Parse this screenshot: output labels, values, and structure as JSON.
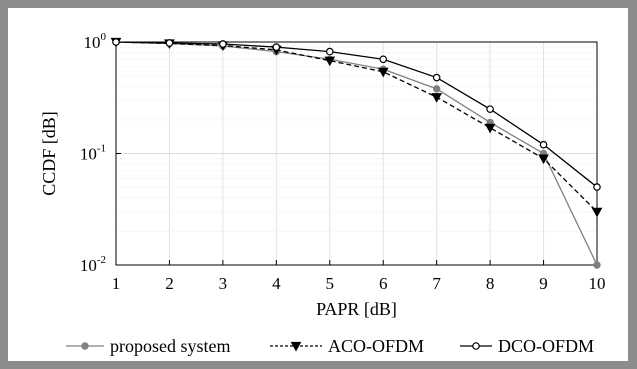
{
  "chart_data": {
    "type": "line",
    "xlabel": "PAPR [dB]",
    "ylabel": "CCDF [dB]",
    "x": [
      1,
      2,
      3,
      4,
      5,
      6,
      7,
      8,
      9,
      10
    ],
    "xlim": [
      1,
      10
    ],
    "ylim": [
      0.01,
      1
    ],
    "yscale": "log",
    "grid": true,
    "legend_position": "bottom",
    "x_ticks": [
      "1",
      "2",
      "3",
      "4",
      "5",
      "6",
      "7",
      "8",
      "9",
      "10"
    ],
    "y_ticks": [
      {
        "value": 1,
        "base": "10",
        "exp": "0"
      },
      {
        "value": 0.1,
        "base": "10",
        "exp": "-1"
      },
      {
        "value": 0.01,
        "base": "10",
        "exp": "-2"
      }
    ],
    "series": [
      {
        "name": "proposed system",
        "color": "#808080",
        "dash": "solid",
        "marker": "dot",
        "values": [
          1.0,
          0.97,
          0.92,
          0.82,
          0.7,
          0.57,
          0.38,
          0.19,
          0.1,
          0.01
        ]
      },
      {
        "name": "ACO-OFDM",
        "color": "#000000",
        "dash": "dashed",
        "marker": "triangle-down",
        "values": [
          1.0,
          0.97,
          0.93,
          0.85,
          0.68,
          0.54,
          0.32,
          0.17,
          0.09,
          0.03
        ]
      },
      {
        "name": "DCO-OFDM",
        "color": "#000000",
        "dash": "solid",
        "marker": "circle-open",
        "values": [
          1.0,
          0.98,
          0.96,
          0.9,
          0.82,
          0.7,
          0.48,
          0.25,
          0.12,
          0.05
        ]
      }
    ]
  }
}
